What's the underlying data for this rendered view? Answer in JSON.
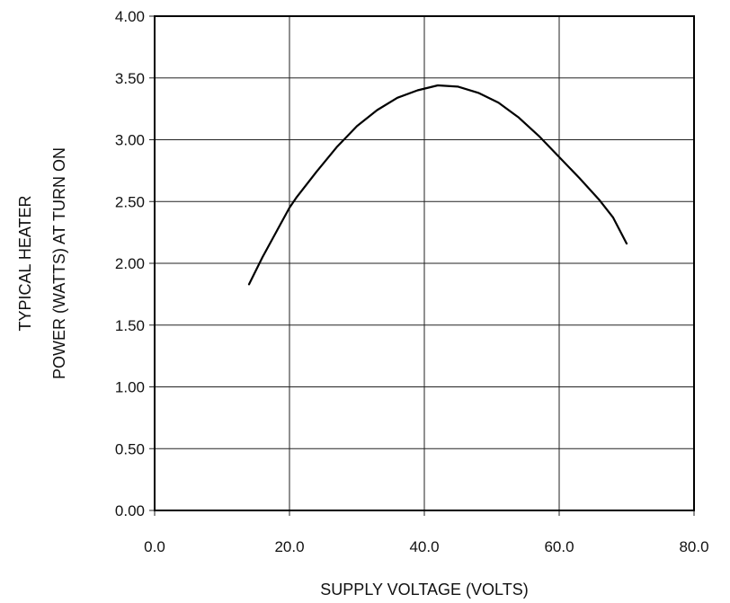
{
  "chart_data": {
    "type": "line",
    "title": "",
    "xlabel": "SUPPLY VOLTAGE (VOLTS)",
    "ylabel_lines": [
      "TYPICAL HEATER",
      "POWER (WATTS) AT TURN ON"
    ],
    "xlim": [
      0,
      80
    ],
    "ylim": [
      0,
      4
    ],
    "grid": true,
    "legend": "none",
    "x_ticks": [
      {
        "value": 0,
        "label": "0.0"
      },
      {
        "value": 20,
        "label": "20.0"
      },
      {
        "value": 40,
        "label": "40.0"
      },
      {
        "value": 60,
        "label": "60.0"
      },
      {
        "value": 80,
        "label": "80.0"
      }
    ],
    "y_ticks": [
      {
        "value": 0,
        "label": "0.00"
      },
      {
        "value": 0.5,
        "label": "0.50"
      },
      {
        "value": 1.0,
        "label": "1.00"
      },
      {
        "value": 1.5,
        "label": "1.50"
      },
      {
        "value": 2.0,
        "label": "2.00"
      },
      {
        "value": 2.5,
        "label": "2.50"
      },
      {
        "value": 3.0,
        "label": "3.00"
      },
      {
        "value": 3.5,
        "label": "3.50"
      },
      {
        "value": 4.0,
        "label": "4.00"
      }
    ],
    "series": [
      {
        "x": [
          14,
          16,
          18,
          20,
          21,
          24,
          27,
          30,
          33,
          36,
          39,
          42,
          45,
          48,
          51,
          54,
          57,
          60,
          63,
          66,
          68,
          70
        ],
        "y": [
          1.83,
          2.05,
          2.25,
          2.45,
          2.53,
          2.74,
          2.94,
          3.11,
          3.24,
          3.34,
          3.4,
          3.44,
          3.43,
          3.38,
          3.3,
          3.18,
          3.03,
          2.86,
          2.69,
          2.51,
          2.37,
          2.16
        ]
      }
    ]
  }
}
